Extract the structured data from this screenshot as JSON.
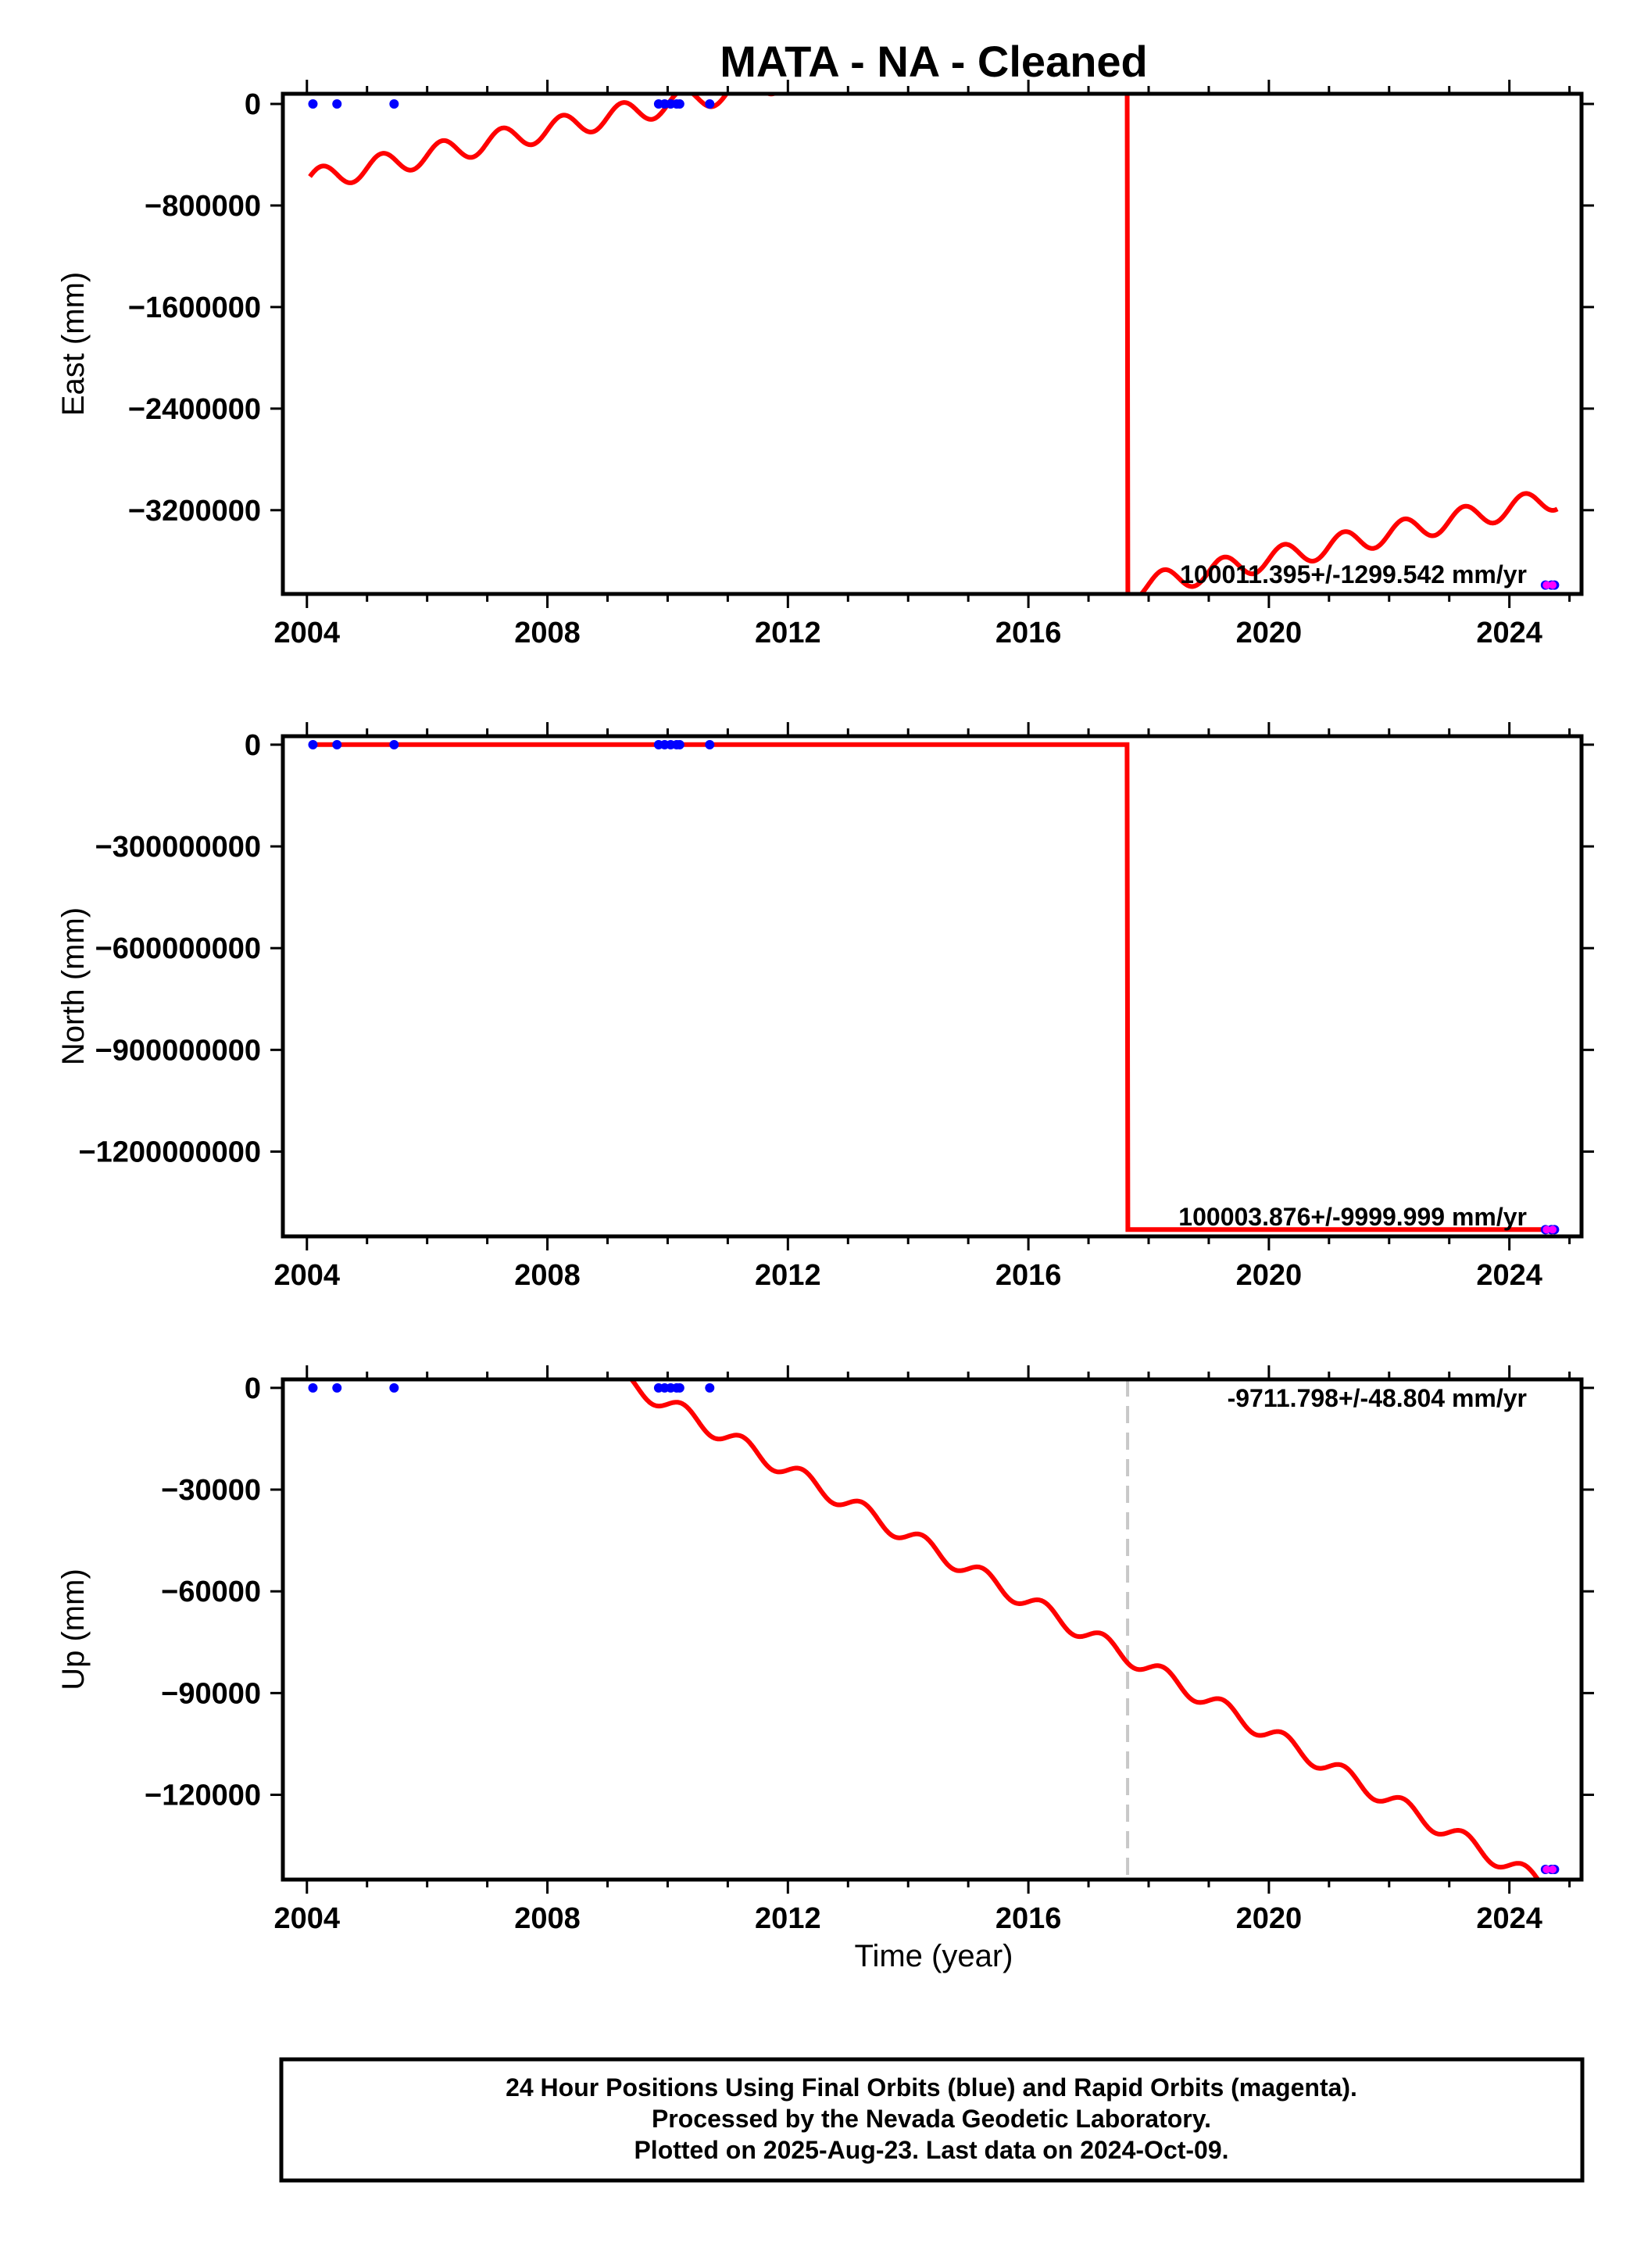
{
  "chart_data": {
    "title": "MATA  - NA - Cleaned",
    "type": "line",
    "xlabel": "Time (year)",
    "xlim": [
      2003.6,
      2025.2
    ],
    "xticks": [
      2004,
      2008,
      2012,
      2016,
      2020,
      2024
    ],
    "colors": {
      "model": "#ff0000",
      "final": "#0000ff",
      "rapid": "#ff00ff",
      "frame": "#000000",
      "offset": "#c8c8c8"
    },
    "panels": [
      {
        "name": "east",
        "ylabel": "East (mm)",
        "ylim": [
          -3860000,
          80000
        ],
        "yticks": [
          0,
          -800000,
          -1600000,
          -2400000,
          -3200000
        ],
        "ytick_labels": [
          "0",
          "−800000",
          "−1600000",
          "−2400000",
          "−3200000"
        ],
        "rate": "100011.395+/-1299.542 mm/yr",
        "model": {
          "x0": 2004.05,
          "x1": 2024.8,
          "step_year": 2017.65,
          "pre_start": -600000,
          "pre_rate": 100000,
          "post_start": -3820000,
          "post_rate": 100000,
          "amplitude": 90000,
          "period": 1.0
        },
        "final_points": [
          [
            2004.1,
            0
          ],
          [
            2004.5,
            0
          ],
          [
            2005.45,
            0
          ],
          [
            2009.85,
            0
          ],
          [
            2009.95,
            0
          ],
          [
            2010.05,
            0
          ],
          [
            2010.15,
            0
          ],
          [
            2010.2,
            0
          ],
          [
            2010.7,
            0
          ],
          [
            2024.6,
            -3790000
          ],
          [
            2024.7,
            -3790000
          ],
          [
            2024.75,
            -3790000
          ]
        ],
        "rapid_points": [
          [
            2024.62,
            -3790000
          ],
          [
            2024.72,
            -3790000
          ]
        ]
      },
      {
        "name": "north",
        "ylabel": "North (mm)",
        "ylim": [
          -1450000000,
          25000000
        ],
        "yticks": [
          0,
          -300000000,
          -600000000,
          -900000000,
          -1200000000
        ],
        "ytick_labels": [
          "0",
          "−300000000",
          "−600000000",
          "−900000000",
          "−1200000000"
        ],
        "rate": "100003.876+/-9999.999 mm/yr",
        "model": {
          "x0": 2004.05,
          "x1": 2024.8,
          "step_year": 2017.65,
          "pre_start": 0,
          "pre_rate": 0,
          "post_start": -1430000000,
          "post_rate": 0,
          "amplitude": 0,
          "period": 1.0
        },
        "final_points": [
          [
            2004.1,
            0
          ],
          [
            2004.5,
            0
          ],
          [
            2005.45,
            0
          ],
          [
            2009.85,
            0
          ],
          [
            2009.95,
            0
          ],
          [
            2010.05,
            0
          ],
          [
            2010.15,
            0
          ],
          [
            2010.2,
            0
          ],
          [
            2010.7,
            0
          ],
          [
            2024.6,
            -1430000000
          ],
          [
            2024.7,
            -1430000000
          ],
          [
            2024.75,
            -1430000000
          ]
        ],
        "rapid_points": [
          [
            2024.62,
            -1430000000
          ],
          [
            2024.72,
            -1430000000
          ]
        ]
      },
      {
        "name": "up",
        "ylabel": "Up (mm)",
        "ylim": [
          -145000,
          2500
        ],
        "yticks": [
          0,
          -30000,
          -60000,
          -90000,
          -120000
        ],
        "ytick_labels": [
          "0",
          "−30000",
          "−60000",
          "−90000",
          "−120000"
        ],
        "rate": "-9711.798+/-48.804 mm/yr",
        "offset_year": 2017.65,
        "model": {
          "x0": 2009.3,
          "x1": 2024.8,
          "step_year": null,
          "pre_start": 2000,
          "pre_rate": -9711.798,
          "post_start": 0,
          "post_rate": 0,
          "amplitude": 2500,
          "period": 1.0
        },
        "final_points": [
          [
            2004.1,
            0
          ],
          [
            2004.5,
            0
          ],
          [
            2005.45,
            0
          ],
          [
            2009.85,
            0
          ],
          [
            2009.95,
            0
          ],
          [
            2010.05,
            0
          ],
          [
            2010.15,
            0
          ],
          [
            2010.2,
            0
          ],
          [
            2010.7,
            0
          ],
          [
            2024.6,
            -142000
          ],
          [
            2024.7,
            -142000
          ],
          [
            2024.75,
            -142000
          ]
        ],
        "rapid_points": [
          [
            2024.62,
            -142000
          ],
          [
            2024.72,
            -142000
          ]
        ]
      }
    ]
  },
  "footer": {
    "line1": "24 Hour Positions Using Final Orbits (blue) and Rapid Orbits (magenta).",
    "line2": "Processed by the Nevada Geodetic Laboratory.",
    "line3": "Plotted on 2025-Aug-23. Last data on 2024-Oct-09."
  }
}
